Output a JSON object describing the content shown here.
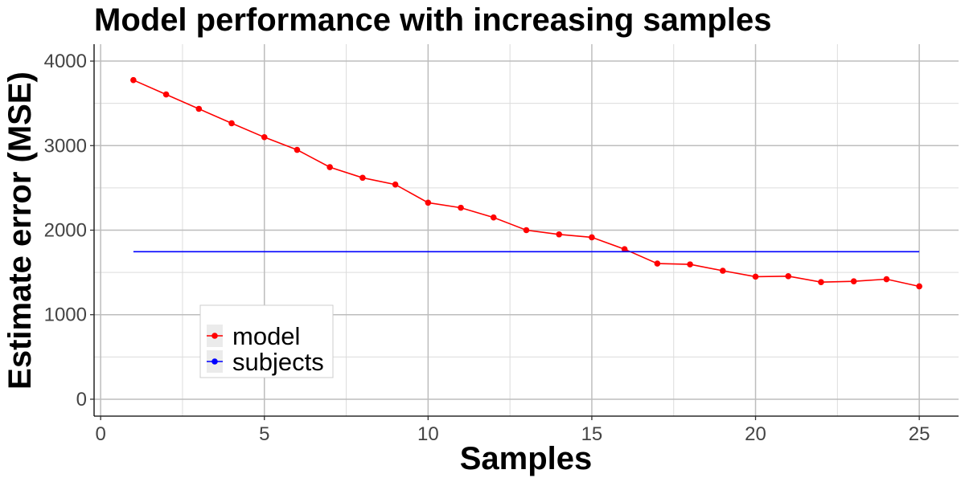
{
  "chart_data": {
    "type": "line",
    "title": "Model performance with increasing samples",
    "xlabel": "Samples",
    "ylabel": "Estimate error (MSE)",
    "xlim": [
      -0.2,
      26.2
    ],
    "ylim": [
      -200,
      4200
    ],
    "x_ticks": [
      0,
      5,
      10,
      15,
      20,
      25
    ],
    "y_ticks": [
      0,
      1000,
      2000,
      3000,
      4000
    ],
    "grid": true,
    "legend_position": "bottom-left",
    "series": [
      {
        "name": "model",
        "color": "#ff0000",
        "markers": true,
        "x": [
          1,
          2,
          3,
          4,
          5,
          6,
          7,
          8,
          9,
          10,
          11,
          12,
          13,
          14,
          15,
          16,
          17,
          18,
          19,
          20,
          21,
          22,
          23,
          24,
          25
        ],
        "y": [
          3775,
          3605,
          3435,
          3265,
          3100,
          2950,
          2745,
          2620,
          2540,
          2325,
          2265,
          2150,
          2000,
          1950,
          1915,
          1775,
          1605,
          1595,
          1520,
          1450,
          1455,
          1385,
          1395,
          1420,
          1335
        ]
      },
      {
        "name": "subjects",
        "color": "#0000ff",
        "markers": false,
        "x": [
          1,
          25
        ],
        "y": [
          1745,
          1745
        ]
      }
    ]
  }
}
